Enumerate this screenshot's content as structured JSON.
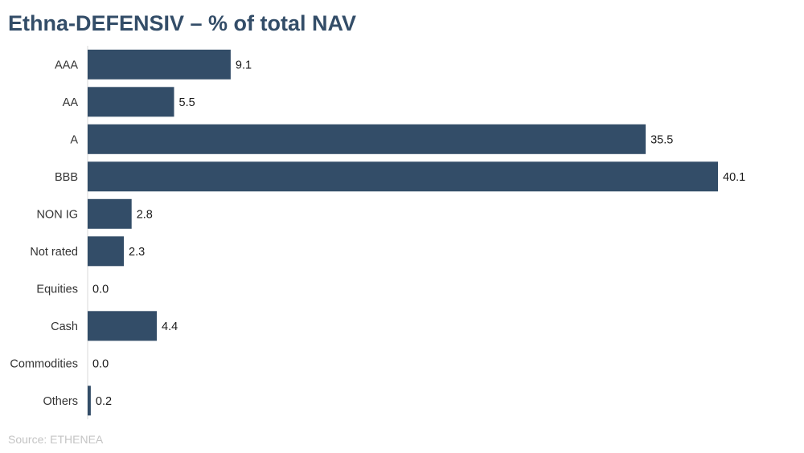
{
  "title": "Ethna-DEFENSIV – % of total NAV",
  "source": "Source: ETHENEA",
  "colors": {
    "bar": "#334d68",
    "title": "#334d68",
    "axis": "#d9d9d9",
    "source": "#c4c4c4"
  },
  "chart_data": {
    "type": "bar",
    "orientation": "horizontal",
    "title": "Ethna-DEFENSIV – % of total NAV",
    "categories": [
      "AAA",
      "AA",
      "A",
      "BBB",
      "NON IG",
      "Not rated",
      "Equities",
      "Cash",
      "Commodities",
      "Others"
    ],
    "values": [
      9.1,
      5.5,
      35.5,
      40.1,
      2.8,
      2.3,
      0.0,
      4.4,
      0.0,
      0.2
    ],
    "value_labels": [
      "9.1",
      "5.5",
      "35.5",
      "40.1",
      "2.8",
      "2.3",
      "0.0",
      "4.4",
      "0.0",
      "0.2"
    ],
    "xlim": [
      0,
      40.1
    ],
    "grid": false,
    "legend": "none"
  }
}
